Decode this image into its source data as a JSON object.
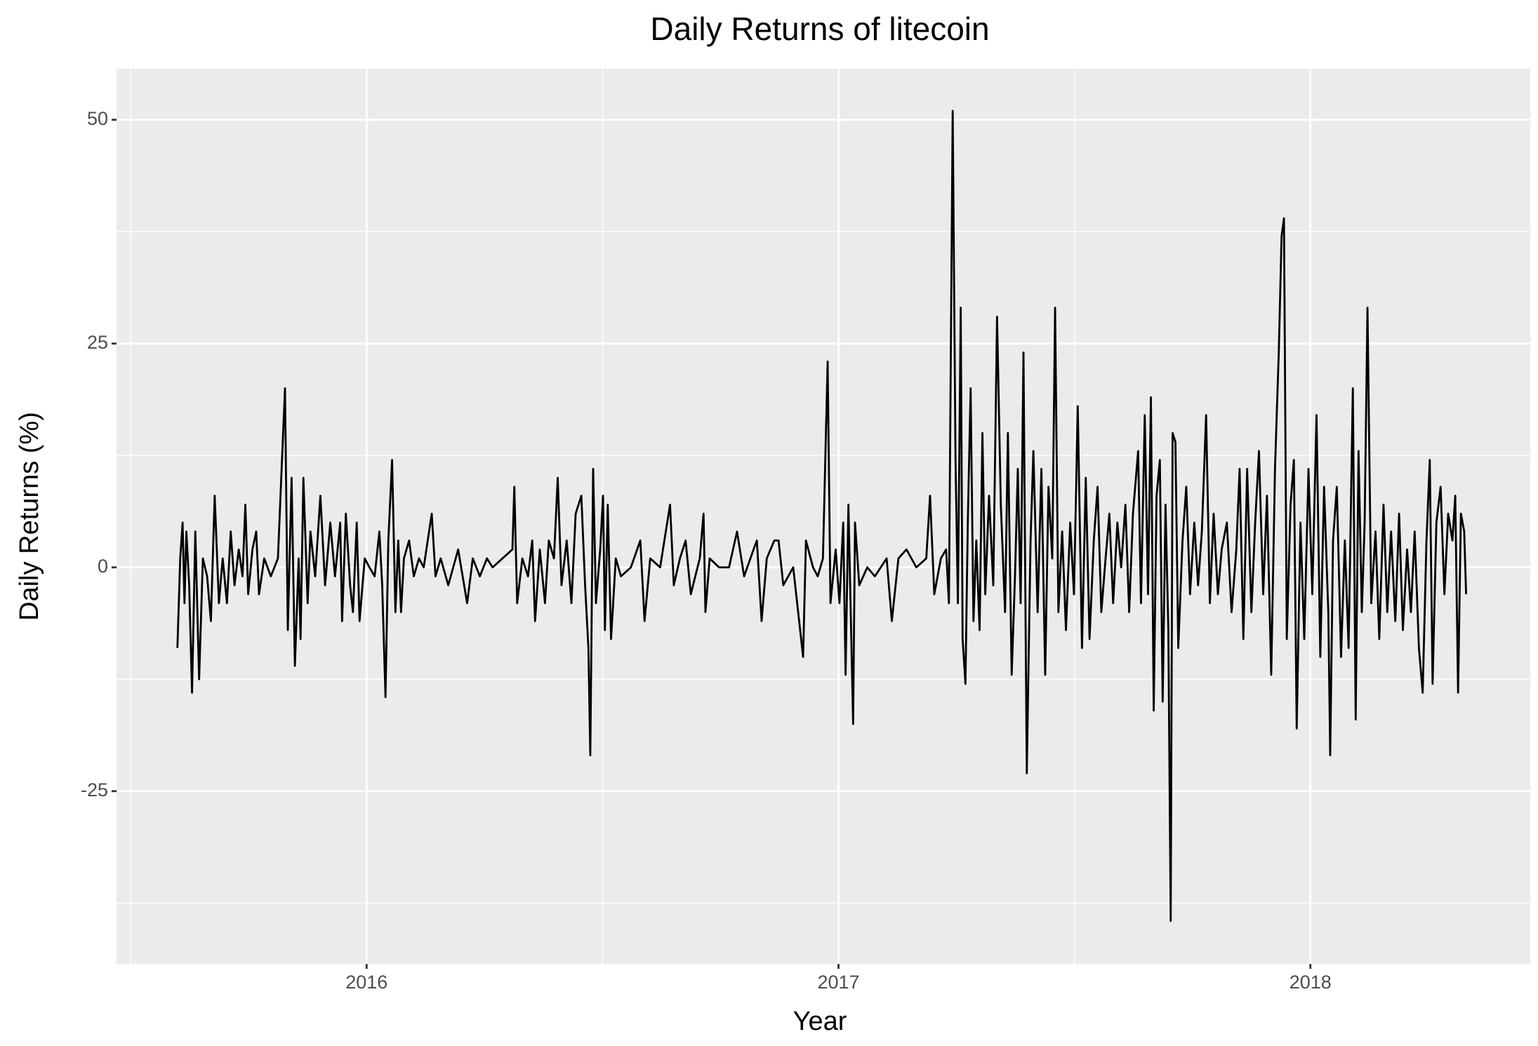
{
  "chart_data": {
    "type": "line",
    "title": "Daily Returns of litecoin",
    "x_label": "Year",
    "y_label": "Daily Returns (%)",
    "x": [
      2015.599,
      2015.605,
      2015.61,
      2015.614,
      2015.618,
      2015.624,
      2015.63,
      2015.637,
      2015.645,
      2015.653,
      2015.662,
      2015.67,
      2015.678,
      2015.687,
      2015.695,
      2015.704,
      2015.712,
      2015.72,
      2015.729,
      2015.737,
      2015.743,
      2015.749,
      2015.758,
      2015.766,
      2015.772,
      2015.783,
      2015.797,
      2015.812,
      2015.827,
      2015.833,
      2015.841,
      2015.848,
      2015.856,
      2015.86,
      2015.866,
      2015.875,
      2015.881,
      2015.891,
      2015.902,
      2015.912,
      2015.923,
      2015.933,
      2015.944,
      2015.948,
      2015.956,
      2015.965,
      2015.971,
      2015.979,
      2015.985,
      2015.996,
      2016.006,
      2016.017,
      2016.027,
      2016.033,
      2016.04,
      2016.046,
      2016.054,
      2016.061,
      2016.067,
      2016.073,
      2016.079,
      2016.09,
      2016.1,
      2016.111,
      2016.121,
      2016.138,
      2016.146,
      2016.157,
      2016.173,
      2016.194,
      2016.213,
      2016.225,
      2016.24,
      2016.255,
      2016.267,
      2016.288,
      2016.309,
      2016.313,
      2016.319,
      2016.33,
      2016.342,
      2016.351,
      2016.357,
      2016.367,
      2016.378,
      2016.386,
      2016.397,
      2016.405,
      2016.413,
      2016.424,
      2016.434,
      2016.443,
      2016.455,
      2016.463,
      2016.47,
      2016.474,
      2016.48,
      2016.486,
      2016.495,
      2016.501,
      2016.505,
      2016.511,
      2016.518,
      2016.528,
      2016.539,
      2016.56,
      2016.58,
      2016.589,
      2016.601,
      2016.622,
      2016.643,
      2016.651,
      2016.664,
      2016.676,
      2016.687,
      2016.706,
      2016.714,
      2016.718,
      2016.727,
      2016.747,
      2016.768,
      2016.785,
      2016.8,
      2016.82,
      2016.827,
      2016.837,
      2016.848,
      2016.864,
      2016.873,
      2016.883,
      2016.904,
      2016.925,
      2016.931,
      2016.946,
      2016.956,
      2016.967,
      2016.977,
      2016.983,
      2016.994,
      2017.002,
      2017.01,
      2017.015,
      2017.021,
      2017.031,
      2017.035,
      2017.044,
      2017.061,
      2017.077,
      2017.102,
      2017.113,
      2017.127,
      2017.144,
      2017.165,
      2017.186,
      2017.194,
      2017.203,
      2017.217,
      2017.228,
      2017.234,
      2017.242,
      2017.248,
      2017.253,
      2017.259,
      2017.263,
      2017.269,
      2017.274,
      2017.28,
      2017.286,
      2017.292,
      2017.299,
      2017.305,
      2017.311,
      2017.319,
      2017.328,
      2017.336,
      2017.344,
      2017.353,
      2017.359,
      2017.367,
      2017.374,
      2017.38,
      2017.386,
      2017.392,
      2017.399,
      2017.407,
      2017.413,
      2017.422,
      2017.43,
      2017.438,
      2017.445,
      2017.453,
      2017.459,
      2017.466,
      2017.474,
      2017.482,
      2017.491,
      2017.499,
      2017.507,
      2017.516,
      2017.524,
      2017.532,
      2017.541,
      2017.549,
      2017.557,
      2017.566,
      2017.574,
      2017.582,
      2017.591,
      2017.599,
      2017.608,
      2017.616,
      2017.624,
      2017.635,
      2017.641,
      2017.649,
      2017.656,
      2017.662,
      2017.668,
      2017.674,
      2017.681,
      2017.687,
      2017.693,
      2017.699,
      2017.704,
      2017.708,
      2017.714,
      2017.72,
      2017.729,
      2017.737,
      2017.745,
      2017.754,
      2017.762,
      2017.77,
      2017.779,
      2017.787,
      2017.795,
      2017.804,
      2017.812,
      2017.823,
      2017.833,
      2017.843,
      2017.85,
      2017.858,
      2017.866,
      2017.875,
      2017.883,
      2017.891,
      2017.9,
      2017.908,
      2017.917,
      2017.925,
      2017.933,
      2017.939,
      2017.944,
      2017.95,
      2017.958,
      2017.965,
      2017.971,
      2017.979,
      2017.987,
      2017.996,
      2018.004,
      2018.013,
      2018.021,
      2018.029,
      2018.038,
      2018.042,
      2018.048,
      2018.056,
      2018.065,
      2018.073,
      2018.081,
      2018.09,
      2018.096,
      2018.102,
      2018.109,
      2018.115,
      2018.121,
      2018.129,
      2018.138,
      2018.146,
      2018.155,
      2018.163,
      2018.171,
      2018.18,
      2018.188,
      2018.196,
      2018.205,
      2018.213,
      2018.221,
      2018.23,
      2018.238,
      2018.246,
      2018.253,
      2018.259,
      2018.267,
      2018.276,
      2018.284,
      2018.292,
      2018.301,
      2018.307,
      2018.313,
      2018.319,
      2018.326,
      2018.33
    ],
    "values": [
      -9,
      1,
      5,
      -4,
      4,
      -2,
      -14,
      4,
      -12.5,
      1,
      -1,
      -6,
      8,
      -4,
      1,
      -4,
      4,
      -2,
      2,
      -1,
      7,
      -3,
      2,
      4,
      -3,
      1,
      -1,
      1,
      20,
      -7,
      10,
      -11,
      1,
      -8,
      10,
      -4,
      4,
      -1,
      8,
      -2,
      5,
      -1,
      5,
      -6,
      6,
      -2,
      -5,
      5,
      -6,
      1,
      0,
      -1,
      4,
      -2,
      -14.5,
      3,
      12,
      -5,
      3,
      -5,
      1,
      3,
      -1,
      1,
      0,
      6,
      -1,
      1,
      -2,
      2,
      -4,
      1,
      -1,
      1,
      0,
      1,
      2,
      9,
      -4,
      1,
      -1,
      3,
      -6,
      2,
      -4,
      3,
      1,
      10,
      -2,
      3,
      -4,
      6,
      8,
      -2,
      -9,
      -21,
      11,
      -4,
      2,
      8,
      -7,
      7,
      -8,
      1,
      -1,
      0,
      3,
      -6,
      1,
      0,
      7,
      -2,
      1,
      3,
      -3,
      1,
      6,
      -5,
      1,
      0,
      0,
      4,
      -1,
      2,
      3,
      -6,
      1,
      3,
      3,
      -2,
      0,
      -10,
      3,
      0,
      -1,
      1,
      23,
      -4,
      2,
      -4,
      5,
      -12,
      7,
      -17.5,
      5,
      -2,
      0,
      -1,
      1,
      -6,
      1,
      2,
      0,
      1,
      8,
      -3,
      1,
      2,
      -4,
      51,
      12,
      -4,
      29,
      -8,
      -13,
      5,
      20,
      -6,
      3,
      -7,
      15,
      -3,
      8,
      -2,
      28,
      7,
      -5,
      15,
      -12,
      -1,
      11,
      -4,
      24,
      -23,
      3,
      13,
      -5,
      11,
      -12,
      9,
      1,
      29,
      -5,
      4,
      -7,
      5,
      -3,
      18,
      -9,
      10,
      -8,
      3,
      9,
      -5,
      1,
      6,
      -4,
      5,
      0,
      7,
      -5,
      6,
      13,
      -4,
      17,
      -3,
      19,
      -16,
      8,
      12,
      -15,
      7,
      -7,
      -39.5,
      15,
      14,
      -9,
      3,
      9,
      -3,
      5,
      -2,
      4,
      17,
      -4,
      6,
      -3,
      2,
      5,
      -5,
      2,
      11,
      -8,
      11,
      -5,
      5,
      13,
      -3,
      8,
      -12,
      11,
      24,
      37,
      39,
      -8,
      7,
      12,
      -18,
      5,
      -8,
      11,
      -3,
      17,
      -10,
      9,
      -5,
      -21,
      3,
      9,
      -10,
      3,
      -9,
      20,
      -17,
      13,
      -5,
      5,
      29,
      -4,
      4,
      -8,
      7,
      -5,
      4,
      -6,
      6,
      -7,
      2,
      -5,
      4,
      -9,
      -14,
      3,
      12,
      -13,
      5,
      9,
      -3,
      6,
      3,
      8,
      -14,
      6,
      4,
      -3
    ],
    "color": "#000000",
    "xlim": [
      2015.47,
      2018.466
    ],
    "xticks": [
      2016,
      2017,
      2018
    ],
    "ylim": [
      -44.3,
      55.7
    ],
    "yticks": [
      -25,
      0,
      25,
      50
    ],
    "grid": true
  }
}
